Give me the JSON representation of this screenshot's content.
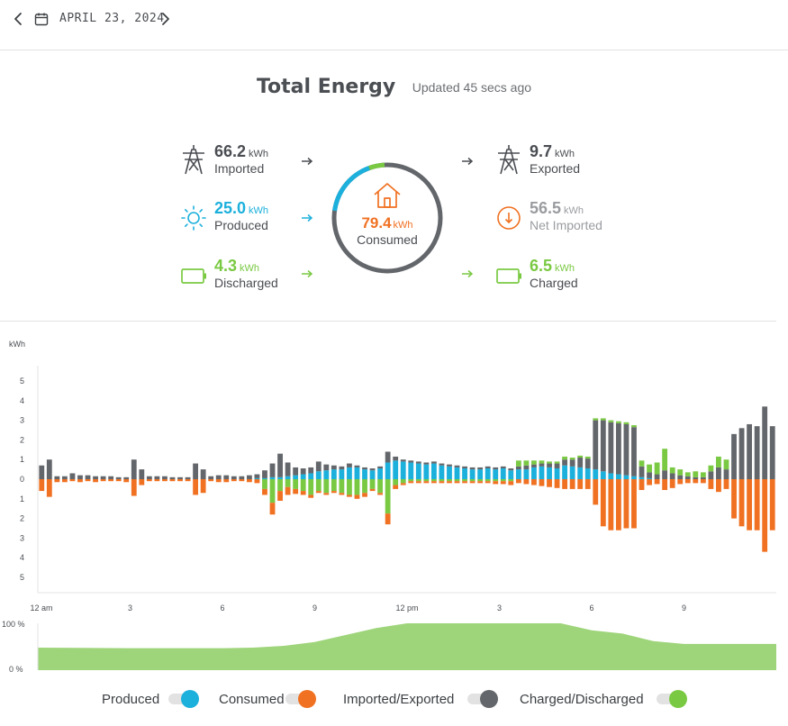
{
  "header": {
    "date": "APRIL 23, 2024",
    "prev_icon": "chevron-left-icon",
    "next_icon": "chevron-right-icon",
    "calendar_icon": "calendar-icon"
  },
  "summary": {
    "title": "Total Energy",
    "updated": "Updated 45 secs ago",
    "imported": {
      "value": "66.2",
      "unit": "kWh",
      "label": "Imported",
      "icon": "power-tower-icon"
    },
    "produced": {
      "value": "25.0",
      "unit": "kWh",
      "label": "Produced",
      "icon": "sun-icon"
    },
    "discharged": {
      "value": "4.3",
      "unit": "kWh",
      "label": "Discharged",
      "icon": "battery-icon"
    },
    "consumed": {
      "value": "79.4",
      "unit": "kWh",
      "label": "Consumed",
      "icon": "house-icon"
    },
    "exported": {
      "value": "9.7",
      "unit": "kWh",
      "label": "Exported",
      "icon": "power-tower-icon"
    },
    "net_imported": {
      "value": "56.5",
      "unit": "kWh",
      "label": "Net Imported",
      "icon": "down-arrow-circle-icon"
    },
    "charged": {
      "value": "6.5",
      "unit": "kWh",
      "label": "Charged",
      "icon": "battery-icon"
    }
  },
  "colors": {
    "produced": "#1cb0dc",
    "consumed": "#f07122",
    "imported_exported": "#63666a",
    "charged_discharged": "#7ac943",
    "soc_fill": "#9ed47a"
  },
  "chart_data": [
    {
      "type": "bar",
      "ylabel": "kWh",
      "y_ticks_top": [
        "5",
        "4",
        "3",
        "2",
        "1",
        "0"
      ],
      "y_ticks_bottom": [
        "1",
        "2",
        "3",
        "4",
        "5"
      ],
      "ylim": [
        -5,
        5
      ],
      "x_tick_labels": [
        "12 am",
        "3",
        "6",
        "9",
        "12 pm",
        "3",
        "6",
        "9"
      ],
      "x_tick_hours": [
        0,
        3,
        6,
        9,
        12,
        15,
        18,
        21
      ],
      "intervals_per_hour": 4,
      "series": [
        {
          "name": "Produced",
          "key": "produced",
          "values": [
            0,
            0,
            0,
            0,
            0,
            0,
            0,
            0,
            0,
            0,
            0,
            0,
            0,
            0,
            0,
            0,
            0,
            0,
            0,
            0,
            0,
            0,
            0,
            0,
            0,
            0,
            0,
            0,
            0.05,
            0.05,
            0.1,
            0.1,
            0.15,
            0.2,
            0.25,
            0.3,
            0.4,
            0.45,
            0.5,
            0.5,
            0.6,
            0.6,
            0.5,
            0.45,
            0.55,
            0.85,
            0.95,
            0.9,
            0.85,
            0.8,
            0.75,
            0.8,
            0.7,
            0.65,
            0.6,
            0.55,
            0.5,
            0.5,
            0.55,
            0.5,
            0.55,
            0.45,
            0.5,
            0.5,
            0.6,
            0.65,
            0.6,
            0.55,
            0.7,
            0.65,
            0.6,
            0.55,
            0.5,
            0.4,
            0.3,
            0.25,
            0.2,
            0.15,
            0.1,
            0.05,
            0,
            0,
            0,
            0,
            0,
            0,
            0,
            0,
            0,
            0,
            0,
            0,
            0,
            0,
            0,
            0
          ]
        },
        {
          "name": "Consumed",
          "key": "consumed",
          "values": [
            -0.6,
            -0.9,
            -0.15,
            -0.15,
            -0.1,
            -0.15,
            -0.1,
            -0.15,
            -0.1,
            -0.1,
            -0.1,
            -0.15,
            -0.85,
            -0.3,
            -0.1,
            -0.1,
            -0.1,
            -0.1,
            -0.1,
            -0.1,
            -0.8,
            -0.7,
            -0.1,
            -0.15,
            -0.15,
            -0.1,
            -0.1,
            -0.15,
            -0.2,
            -0.3,
            -0.6,
            -0.5,
            -0.4,
            -0.25,
            -0.2,
            -0.15,
            -0.1,
            -0.1,
            -0.1,
            -0.1,
            -0.1,
            -0.2,
            -0.2,
            -0.1,
            -0.1,
            -0.55,
            -0.2,
            -0.1,
            -0.1,
            -0.1,
            -0.1,
            -0.1,
            -0.1,
            -0.1,
            -0.1,
            -0.1,
            -0.1,
            -0.1,
            -0.1,
            -0.15,
            -0.15,
            -0.2,
            -0.2,
            -0.25,
            -0.3,
            -0.35,
            -0.4,
            -0.45,
            -0.5,
            -0.5,
            -0.5,
            -0.5,
            -1.3,
            -2.4,
            -2.6,
            -2.6,
            -2.5,
            -2.5,
            -0.55,
            -0.3,
            -0.25,
            -0.55,
            -0.45,
            -0.25,
            -0.2,
            -0.2,
            -0.2,
            -0.5,
            -0.65,
            -0.5,
            -2.0,
            -2.4,
            -2.6,
            -2.6,
            -3.7,
            -2.6
          ]
        },
        {
          "name": "Imported/Exported",
          "key": "imported_exported",
          "values": [
            0.7,
            1.0,
            0.15,
            0.15,
            0.3,
            0.2,
            0.2,
            0.15,
            0.15,
            0.15,
            0.1,
            0.1,
            1.0,
            0.5,
            0.15,
            0.15,
            0.15,
            0.1,
            0.1,
            0.1,
            0.8,
            0.5,
            0.15,
            0.2,
            0.2,
            0.15,
            0.15,
            0.2,
            0.2,
            0.4,
            0.7,
            1.2,
            0.7,
            0.4,
            0.3,
            0.3,
            0.5,
            0.3,
            0.2,
            0.15,
            0.2,
            0.1,
            0.1,
            0.1,
            0.1,
            0.55,
            0.2,
            0.1,
            0.1,
            0.1,
            0.1,
            0.1,
            0.1,
            0.1,
            0.1,
            0.1,
            0.1,
            0.1,
            0.1,
            0.1,
            0.1,
            0.1,
            0.15,
            0.2,
            0.15,
            0.15,
            0.2,
            0.25,
            0.3,
            0.35,
            0.5,
            0.5,
            2.5,
            2.6,
            2.6,
            2.6,
            2.6,
            2.5,
            0.55,
            0.3,
            0.25,
            0.45,
            0.3,
            0.2,
            0.15,
            0.1,
            0.1,
            0.4,
            0.6,
            0.5,
            2.3,
            2.6,
            2.8,
            2.7,
            3.7,
            2.7
          ]
        },
        {
          "name": "Charged/Discharged",
          "key": "charged_discharged",
          "values": [
            0,
            0,
            0,
            0,
            0,
            0,
            0,
            0,
            0,
            0,
            0,
            0,
            0,
            0,
            0,
            0,
            0,
            0,
            0,
            0,
            0,
            0,
            0,
            0,
            0,
            0,
            0,
            0,
            0,
            -0.5,
            -1.2,
            -0.6,
            -0.4,
            -0.5,
            -0.6,
            -0.8,
            -0.6,
            -0.7,
            -0.6,
            -0.7,
            -0.8,
            -0.8,
            -0.7,
            -0.5,
            -0.7,
            -1.75,
            -0.3,
            -0.2,
            -0.1,
            -0.1,
            -0.1,
            -0.1,
            -0.1,
            -0.1,
            -0.1,
            -0.1,
            -0.1,
            -0.1,
            -0.1,
            -0.1,
            -0.1,
            -0.1,
            0.3,
            0.25,
            0.2,
            0.15,
            0.1,
            0.1,
            0.15,
            0.1,
            0.1,
            0.1,
            0.1,
            0.1,
            0.1,
            0.1,
            0.1,
            0.1,
            0.3,
            0.4,
            0.6,
            1.1,
            0.3,
            0.3,
            0.2,
            0.3,
            0.25,
            0.3,
            0.55,
            0.5,
            0,
            0,
            0,
            0,
            0,
            0
          ]
        }
      ]
    },
    {
      "type": "area",
      "name": "battery-state-of-charge",
      "y_ticks": [
        "100 %",
        "0 %"
      ],
      "ylim": [
        0,
        100
      ],
      "x_hours": [
        0,
        3,
        6,
        7,
        8,
        9,
        10,
        11,
        12,
        13,
        14,
        15,
        16,
        17,
        18,
        19,
        20,
        21,
        22,
        23,
        24
      ],
      "values": [
        48,
        47,
        47,
        48,
        52,
        60,
        75,
        90,
        100,
        100,
        100,
        100,
        100,
        100,
        85,
        78,
        62,
        56,
        56,
        56,
        56
      ]
    }
  ],
  "legend": [
    {
      "label": "Produced",
      "key": "produced"
    },
    {
      "label": "Consumed",
      "key": "consumed"
    },
    {
      "label": "Imported/Exported",
      "key": "imported_exported"
    },
    {
      "label": "Charged/Discharged",
      "key": "charged_discharged"
    }
  ]
}
